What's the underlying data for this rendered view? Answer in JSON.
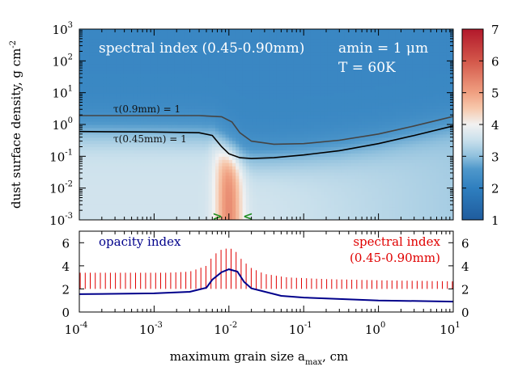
{
  "chart_data": [
    {
      "type": "heatmap",
      "title": "spectral index (0.45-0.90mm)",
      "annotations": {
        "label": "spectral index (0.45-0.90mm)",
        "amin": "amin = 1 μm",
        "temperature": "T = 60K"
      },
      "x_axis": {
        "scale": "log",
        "range": [
          0.0001,
          10
        ],
        "shared_with_panel_below": true
      },
      "y_axis": {
        "label": "dust surface density, g cm",
        "label_exponent": "-2",
        "scale": "log",
        "range": [
          0.001,
          1000
        ],
        "tick_values": [
          0.001,
          0.01,
          0.1,
          1,
          10,
          100,
          1000
        ],
        "tick_labels": [
          {
            "base": "10",
            "exp": "-3"
          },
          {
            "base": "10",
            "exp": "-2"
          },
          {
            "base": "10",
            "exp": "-1"
          },
          {
            "base": "10",
            "exp": "0"
          },
          {
            "base": "10",
            "exp": "1"
          },
          {
            "base": "10",
            "exp": "2"
          },
          {
            "base": "10",
            "exp": "3"
          }
        ]
      },
      "colorbar": {
        "range": [
          1,
          7
        ],
        "ticks": [
          1,
          2,
          3,
          4,
          5,
          6,
          7
        ],
        "tick_labels": [
          "1",
          "2",
          "3",
          "4",
          "5",
          "6",
          "7"
        ],
        "colors": [
          {
            "value": 1,
            "color": "#1f5c9e"
          },
          {
            "value": 2,
            "color": "#2f7fbf"
          },
          {
            "value": 2.6,
            "color": "#4f98cb"
          },
          {
            "value": 3,
            "color": "#8fc0dd"
          },
          {
            "value": 3.5,
            "color": "#c9e0ec"
          },
          {
            "value": 4,
            "color": "#f1f1f1"
          },
          {
            "value": 4.5,
            "color": "#f7c9ad"
          },
          {
            "value": 5,
            "color": "#f0a081"
          },
          {
            "value": 6,
            "color": "#d3574a"
          },
          {
            "value": 7,
            "color": "#b2182b"
          }
        ]
      },
      "field_description": {
        "optically_thick_index": 2.2,
        "thin_small_grain_index": 3.6,
        "peak_index": 5.3,
        "peak_grain_size": 0.01
      },
      "contours": [
        {
          "label": "τ(0.9mm) = 1",
          "color": "#444444",
          "points": [
            [
              0.0001,
              1.9
            ],
            [
              0.001,
              1.9
            ],
            [
              0.004,
              1.9
            ],
            [
              0.008,
              1.75
            ],
            [
              0.011,
              1.2
            ],
            [
              0.014,
              0.55
            ],
            [
              0.02,
              0.3
            ],
            [
              0.04,
              0.24
            ],
            [
              0.1,
              0.25
            ],
            [
              0.3,
              0.32
            ],
            [
              1,
              0.5
            ],
            [
              3,
              0.9
            ],
            [
              10,
              1.8
            ]
          ]
        },
        {
          "label": "τ(0.45mm) = 1",
          "color": "#000000",
          "points": [
            [
              0.0001,
              0.6
            ],
            [
              0.001,
              0.58
            ],
            [
              0.004,
              0.55
            ],
            [
              0.006,
              0.45
            ],
            [
              0.008,
              0.2
            ],
            [
              0.01,
              0.12
            ],
            [
              0.014,
              0.09
            ],
            [
              0.02,
              0.085
            ],
            [
              0.04,
              0.09
            ],
            [
              0.1,
              0.11
            ],
            [
              0.3,
              0.15
            ],
            [
              1,
              0.25
            ],
            [
              3,
              0.45
            ],
            [
              10,
              0.9
            ]
          ]
        }
      ],
      "markers": [
        {
          "label": ">",
          "x": 0.007,
          "y": 0.0013,
          "color": "#1e8c1e"
        },
        {
          "label": "<",
          "x": 0.018,
          "y": 0.0013,
          "color": "#1e8c1e"
        }
      ]
    },
    {
      "type": "line",
      "xlabel": "maximum grain size a",
      "xlabel_sub": "max",
      "xlabel_unit": ", cm",
      "x_axis": {
        "scale": "log",
        "range": [
          0.0001,
          10
        ],
        "tick_values": [
          0.0001,
          0.001,
          0.01,
          0.1,
          1,
          10
        ],
        "tick_labels": [
          {
            "base": "10",
            "exp": "-4"
          },
          {
            "base": "10",
            "exp": "-3"
          },
          {
            "base": "10",
            "exp": "-2"
          },
          {
            "base": "10",
            "exp": "-1"
          },
          {
            "base": "10",
            "exp": "0"
          },
          {
            "base": "10",
            "exp": "1"
          }
        ]
      },
      "y_axis": {
        "range": [
          0,
          7
        ],
        "ticks": [
          0,
          2,
          4,
          6
        ],
        "tick_labels": [
          "0",
          "2",
          "4",
          "6"
        ]
      },
      "legend": [
        {
          "name": "opacity index",
          "color": "#00008b",
          "position": "top-left"
        },
        {
          "name": "spectral index",
          "name_line2": "(0.45-0.90mm)",
          "color": "#e00000",
          "position": "top-right"
        }
      ],
      "series": [
        {
          "name": "opacity index",
          "style": "line",
          "color": "#00008b",
          "points": [
            [
              0.0001,
              1.55
            ],
            [
              0.001,
              1.62
            ],
            [
              0.003,
              1.75
            ],
            [
              0.005,
              2.1
            ],
            [
              0.006,
              2.8
            ],
            [
              0.008,
              3.45
            ],
            [
              0.01,
              3.7
            ],
            [
              0.013,
              3.5
            ],
            [
              0.016,
              2.6
            ],
            [
              0.02,
              2.05
            ],
            [
              0.05,
              1.4
            ],
            [
              0.1,
              1.25
            ],
            [
              1,
              1.0
            ],
            [
              10,
              0.9
            ]
          ]
        },
        {
          "name": "spectral index (0.45-0.90mm)",
          "style": "vertical-range",
          "color": "#e00000",
          "min": 2.0,
          "upper_points": [
            [
              0.0001,
              3.4
            ],
            [
              0.0004,
              3.4
            ],
            [
              0.0015,
              3.4
            ],
            [
              0.003,
              3.5
            ],
            [
              0.005,
              4.0
            ],
            [
              0.006,
              4.8
            ],
            [
              0.0075,
              5.35
            ],
            [
              0.01,
              5.55
            ],
            [
              0.012,
              5.35
            ],
            [
              0.015,
              4.5
            ],
            [
              0.02,
              3.8
            ],
            [
              0.03,
              3.3
            ],
            [
              0.06,
              3.0
            ],
            [
              0.2,
              2.85
            ],
            [
              1,
              2.75
            ],
            [
              10,
              2.65
            ]
          ]
        }
      ]
    }
  ]
}
